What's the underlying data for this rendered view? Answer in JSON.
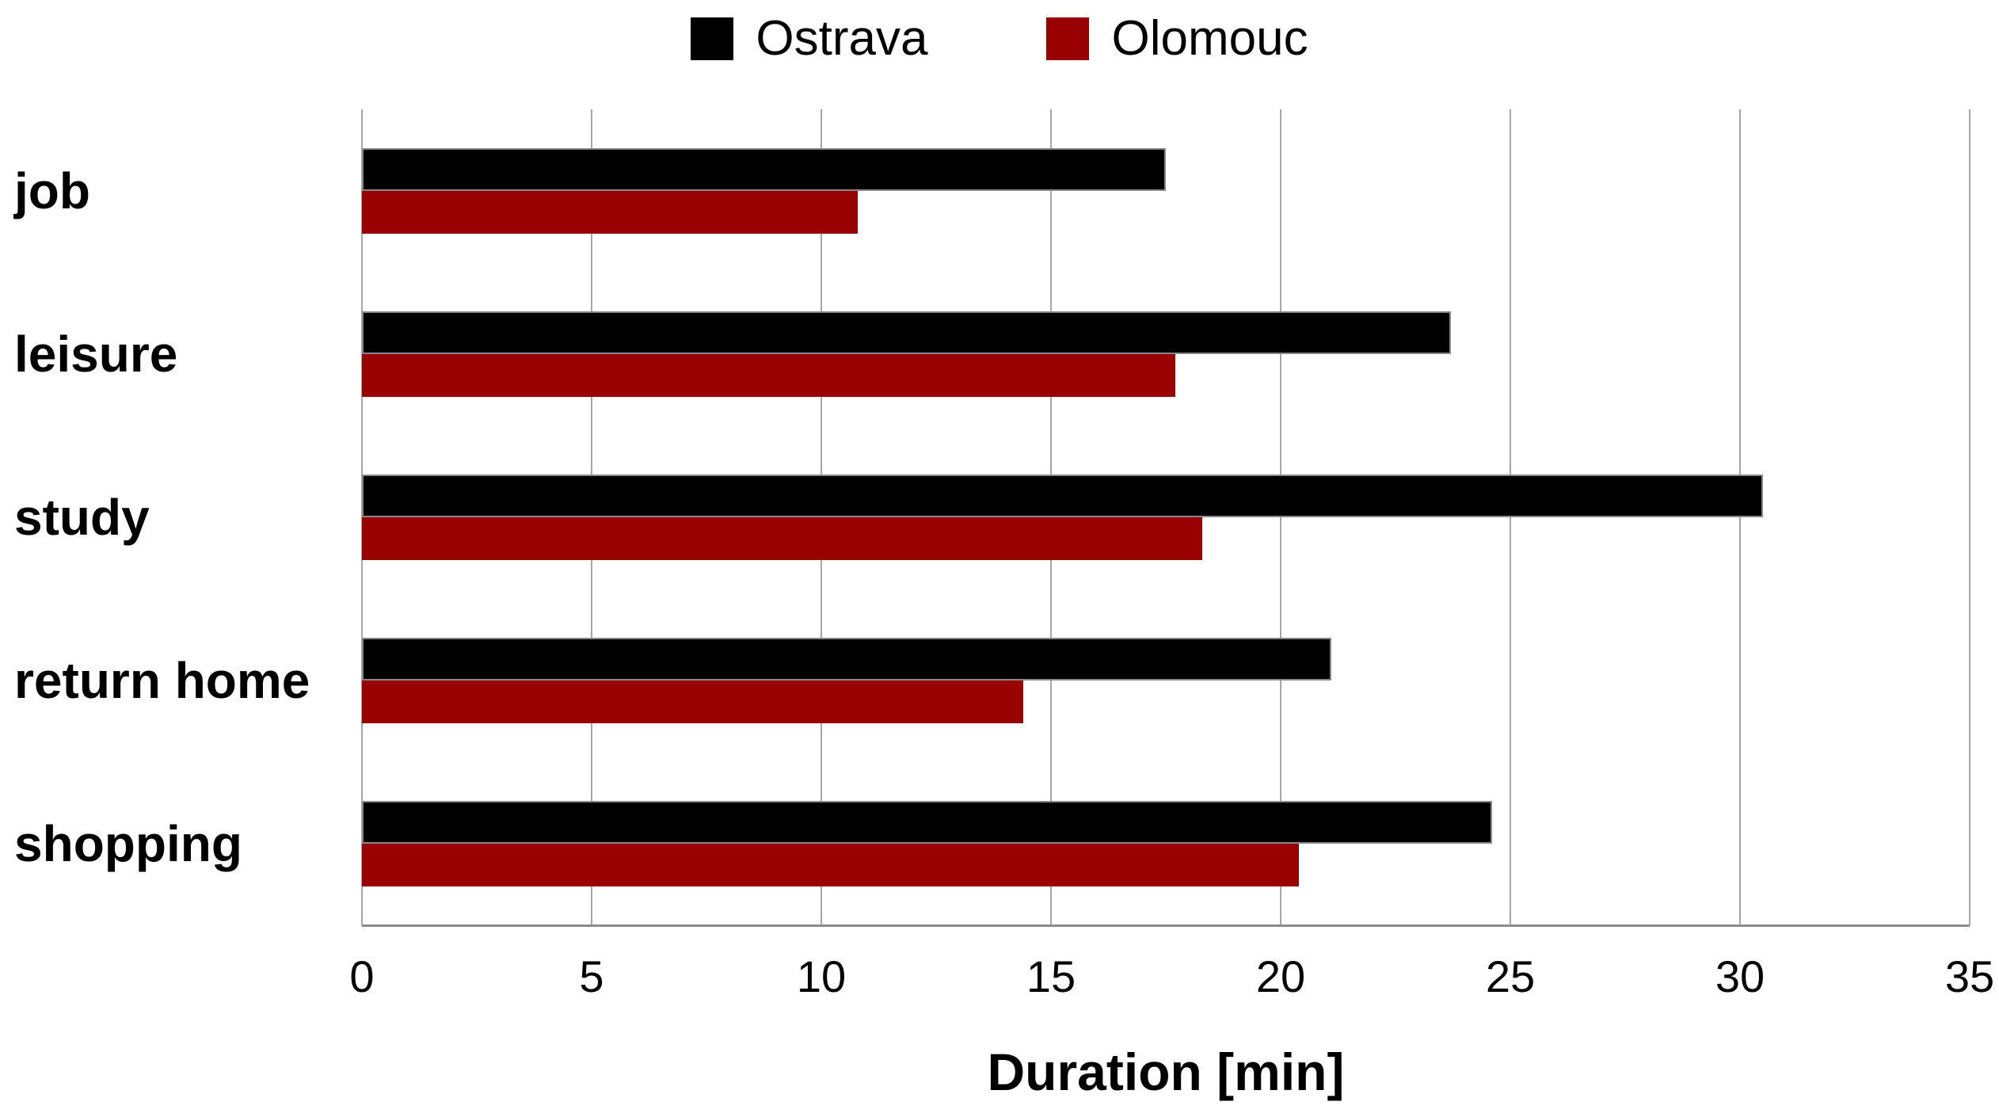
{
  "chart_data": {
    "type": "bar",
    "orientation": "horizontal",
    "title": "",
    "categories": [
      "job",
      "leisure",
      "study",
      "return home",
      "shopping"
    ],
    "series": [
      {
        "name": "Ostrava",
        "color": "#000000",
        "values": [
          17.5,
          23.7,
          30.5,
          21.1,
          24.6
        ]
      },
      {
        "name": "Olomouc",
        "color": "#990000",
        "values": [
          10.8,
          17.7,
          18.3,
          14.4,
          20.4
        ]
      }
    ],
    "xlabel": "Duration [min]",
    "xlim": [
      0,
      35
    ],
    "xticks": [
      0,
      5,
      10,
      15,
      20,
      25,
      30,
      35
    ],
    "grid": "vertical",
    "legend_position": "top"
  },
  "legend": {
    "items": [
      {
        "label": "Ostrava",
        "color": "#000000"
      },
      {
        "label": "Olomouc",
        "color": "#990000"
      }
    ]
  },
  "colors": {
    "background": "#ffffff",
    "gridline": "#a6a6a6",
    "axis_line": "#8c8c8c",
    "text": "#000000"
  }
}
